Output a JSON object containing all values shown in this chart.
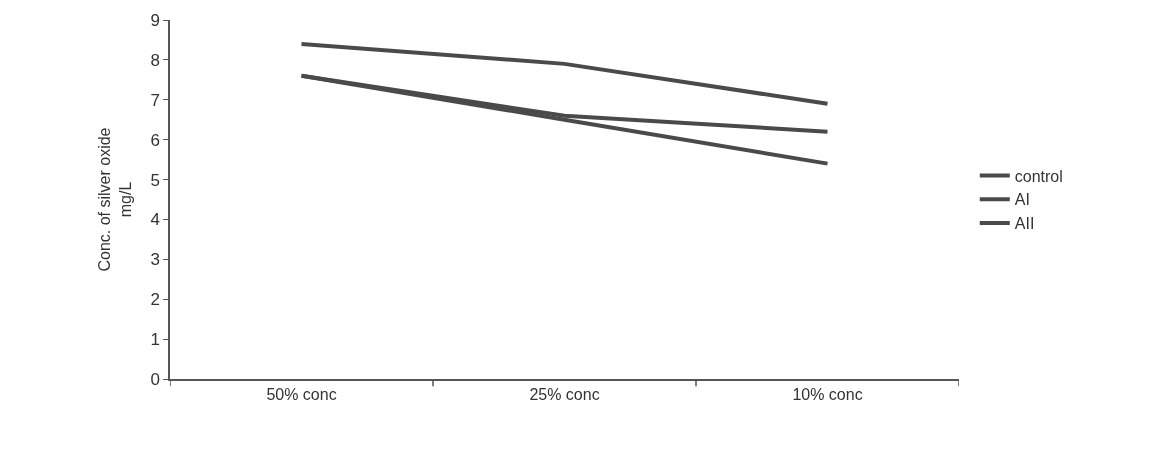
{
  "chart_data": {
    "type": "line",
    "ylabel": "Conc. of silver oxide mg/L",
    "categories": [
      "50% conc",
      "25% conc",
      "10% conc"
    ],
    "series": [
      {
        "name": "control",
        "color": "#4a4a4a",
        "values": [
          8.4,
          7.9,
          6.9
        ]
      },
      {
        "name": "AI",
        "color": "#4a4a4a",
        "values": [
          7.6,
          6.6,
          6.2
        ]
      },
      {
        "name": "AII",
        "color": "#4a4a4a",
        "values": [
          7.6,
          6.5,
          5.4
        ]
      }
    ],
    "ylim": [
      0,
      9
    ],
    "yticks": [
      0,
      1,
      2,
      3,
      4,
      5,
      6,
      7,
      8,
      9
    ],
    "grid": false,
    "legend": "right",
    "marker": "none",
    "line_style": "solid"
  }
}
